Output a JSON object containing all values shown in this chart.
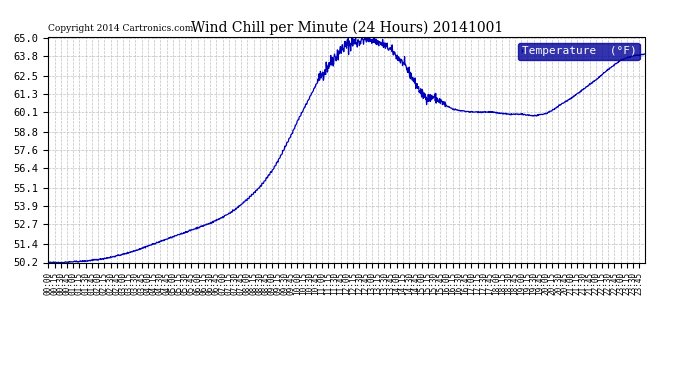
{
  "title": "Wind Chill per Minute (24 Hours) 20141001",
  "copyright": "Copyright 2014 Cartronics.com",
  "legend_label": "Temperature  (°F)",
  "line_color": "#0000bb",
  "background_color": "#ffffff",
  "grid_color": "#b0b0b0",
  "ylim": [
    50.2,
    65.0
  ],
  "yticks": [
    50.2,
    51.4,
    52.7,
    53.9,
    55.1,
    56.4,
    57.6,
    58.8,
    60.1,
    61.3,
    62.5,
    63.8,
    65.0
  ],
  "keypoints_x": [
    0,
    30,
    60,
    90,
    120,
    150,
    180,
    210,
    240,
    270,
    300,
    330,
    360,
    390,
    420,
    450,
    480,
    510,
    540,
    555,
    570,
    585,
    600,
    615,
    630,
    645,
    660,
    675,
    690,
    700,
    710,
    720,
    730,
    740,
    750,
    760,
    770,
    780,
    795,
    810,
    825,
    840,
    855,
    870,
    885,
    900,
    915,
    930,
    945,
    960,
    975,
    990,
    1005,
    1020,
    1035,
    1050,
    1065,
    1080,
    1095,
    1110,
    1125,
    1140,
    1155,
    1170,
    1185,
    1200,
    1215,
    1230,
    1260,
    1290,
    1320,
    1350,
    1380,
    1410,
    1439
  ],
  "keypoints_y": [
    50.2,
    50.2,
    50.25,
    50.3,
    50.4,
    50.55,
    50.75,
    51.0,
    51.3,
    51.6,
    51.9,
    52.2,
    52.5,
    52.8,
    53.2,
    53.7,
    54.4,
    55.2,
    56.3,
    57.0,
    57.8,
    58.6,
    59.5,
    60.3,
    61.1,
    61.9,
    62.6,
    63.2,
    63.7,
    64.0,
    64.3,
    64.5,
    64.6,
    64.7,
    64.8,
    64.85,
    64.9,
    64.85,
    64.7,
    64.5,
    64.2,
    63.8,
    63.3,
    62.7,
    62.0,
    61.3,
    61.0,
    61.1,
    60.8,
    60.5,
    60.3,
    60.2,
    60.15,
    60.1,
    60.1,
    60.1,
    60.1,
    60.05,
    60.0,
    59.95,
    59.95,
    59.95,
    59.9,
    59.85,
    59.9,
    60.0,
    60.2,
    60.5,
    61.0,
    61.6,
    62.2,
    62.9,
    63.5,
    63.8,
    63.9
  ],
  "noise_seed": 42
}
